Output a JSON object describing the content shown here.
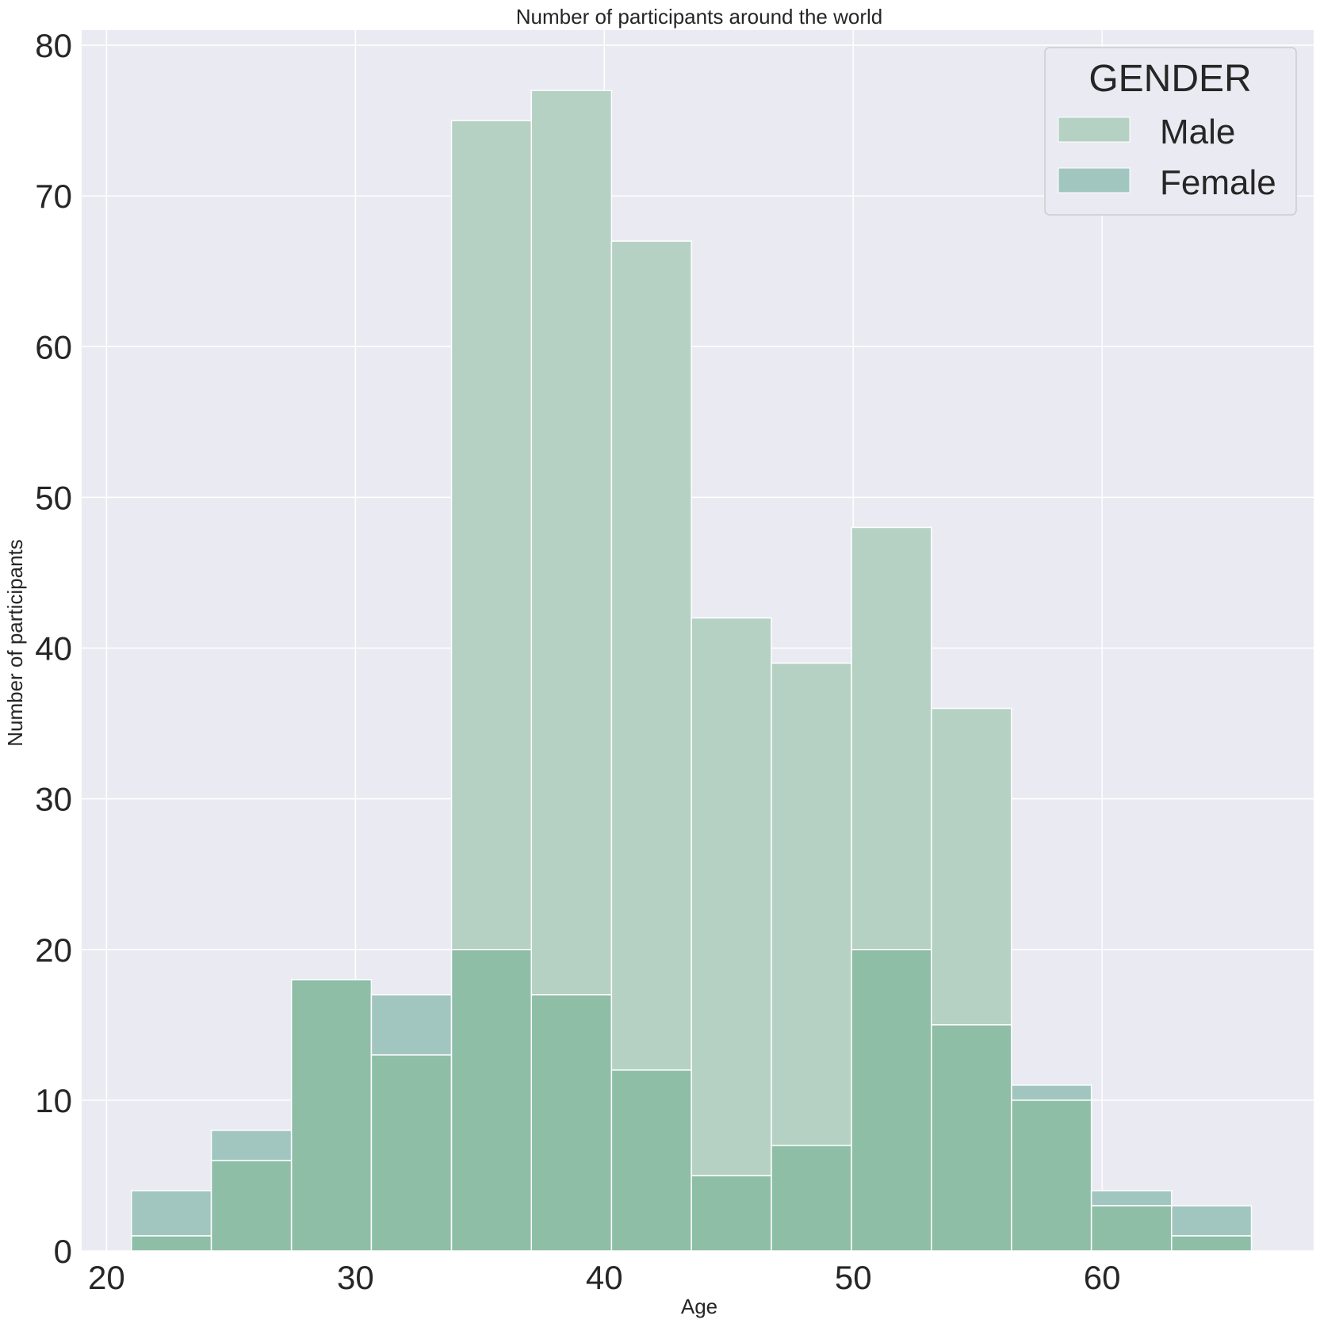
{
  "chart_data": {
    "type": "histogram",
    "title": "Number of participants around the world",
    "xlabel": "Age",
    "ylabel": "Number of participants",
    "xlim": [
      19,
      68.5
    ],
    "ylim": [
      0,
      81
    ],
    "xticks": [
      20,
      30,
      40,
      50,
      60
    ],
    "yticks": [
      0,
      10,
      20,
      30,
      40,
      50,
      60,
      70,
      80
    ],
    "bin_edges": [
      21,
      24.21,
      27.43,
      30.64,
      33.86,
      37.07,
      40.29,
      43.5,
      46.71,
      49.93,
      53.14,
      56.36,
      59.57,
      62.79,
      66
    ],
    "grid": true,
    "legend": {
      "title": "GENDER",
      "position": "top-right"
    },
    "series": [
      {
        "name": "Male",
        "color": "#9dc4ad",
        "values": [
          1,
          6,
          18,
          13,
          20,
          17,
          12,
          5,
          7,
          20,
          15,
          10,
          3,
          1
        ],
        "totals": [
          1,
          6,
          18,
          13,
          75,
          77,
          67,
          42,
          39,
          48,
          36,
          10,
          3,
          1
        ]
      },
      {
        "name": "Female",
        "color": "#86b7ad",
        "values": [
          4,
          8,
          18,
          17,
          20,
          17,
          12,
          5,
          7,
          20,
          15,
          11,
          4,
          3
        ]
      }
    ],
    "colors": {
      "background": "#eaeaf2",
      "grid": "#ffffff",
      "male_only": "#b5d1c3",
      "female_only": "#a1c6c0",
      "overlap": "#8fbea7"
    }
  }
}
